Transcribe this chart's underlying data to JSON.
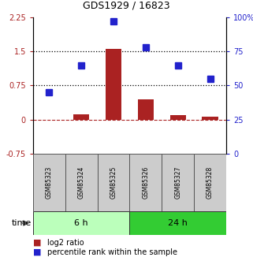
{
  "title": "GDS1929 / 16823",
  "samples": [
    "GSM85323",
    "GSM85324",
    "GSM85325",
    "GSM85326",
    "GSM85327",
    "GSM85328"
  ],
  "log2_ratio": [
    0.0,
    0.12,
    1.55,
    0.45,
    0.1,
    0.07
  ],
  "percentile_rank": [
    45,
    65,
    97,
    78,
    65,
    55
  ],
  "left_ylim": [
    -0.75,
    2.25
  ],
  "left_yticks": [
    -0.75,
    0.0,
    0.75,
    1.5,
    2.25
  ],
  "left_yticklabels": [
    "-0.75",
    "0",
    "0.75",
    "1.5",
    "2.25"
  ],
  "right_ylim": [
    0,
    100
  ],
  "right_yticks": [
    0,
    25,
    50,
    75,
    100
  ],
  "right_yticklabels": [
    "0",
    "25",
    "50",
    "75",
    "100%"
  ],
  "hlines": [
    0.75,
    1.5
  ],
  "bar_color": "#aa2222",
  "dot_color": "#2222cc",
  "bar_width": 0.5,
  "time_groups": [
    {
      "label": "6 h",
      "start": 0,
      "end": 3,
      "color": "#bbffbb"
    },
    {
      "label": "24 h",
      "start": 3,
      "end": 6,
      "color": "#33cc33"
    }
  ],
  "legend_bar_label": "log2 ratio",
  "legend_dot_label": "percentile rank within the sample",
  "time_label": "time",
  "background_color": "#ffffff"
}
